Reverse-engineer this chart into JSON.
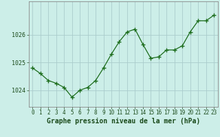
{
  "x": [
    0,
    1,
    2,
    3,
    4,
    5,
    6,
    7,
    8,
    9,
    10,
    11,
    12,
    13,
    14,
    15,
    16,
    17,
    18,
    19,
    20,
    21,
    22,
    23
  ],
  "y": [
    1024.8,
    1024.6,
    1024.35,
    1024.25,
    1024.1,
    1023.75,
    1024.0,
    1024.1,
    1024.35,
    1024.8,
    1025.3,
    1025.75,
    1026.1,
    1026.2,
    1025.65,
    1025.15,
    1025.2,
    1025.45,
    1025.45,
    1025.6,
    1026.1,
    1026.5,
    1026.5,
    1026.7
  ],
  "line_color": "#1a6b1a",
  "marker": "+",
  "marker_size": 5,
  "bg_color": "#cceee8",
  "grid_color": "#aacccc",
  "xlabel": "Graphe pression niveau de la mer (hPa)",
  "xlabel_fontsize": 7,
  "yticks": [
    1024,
    1025,
    1026
  ],
  "xtick_labels": [
    "0",
    "1",
    "2",
    "3",
    "4",
    "5",
    "6",
    "7",
    "8",
    "9",
    "10",
    "11",
    "12",
    "13",
    "14",
    "15",
    "16",
    "17",
    "18",
    "19",
    "20",
    "21",
    "22",
    "23"
  ],
  "ylim": [
    1023.4,
    1027.2
  ],
  "xlim": [
    -0.5,
    23.5
  ],
  "tick_fontsize": 5.5,
  "outer_bg": "#cceee8"
}
